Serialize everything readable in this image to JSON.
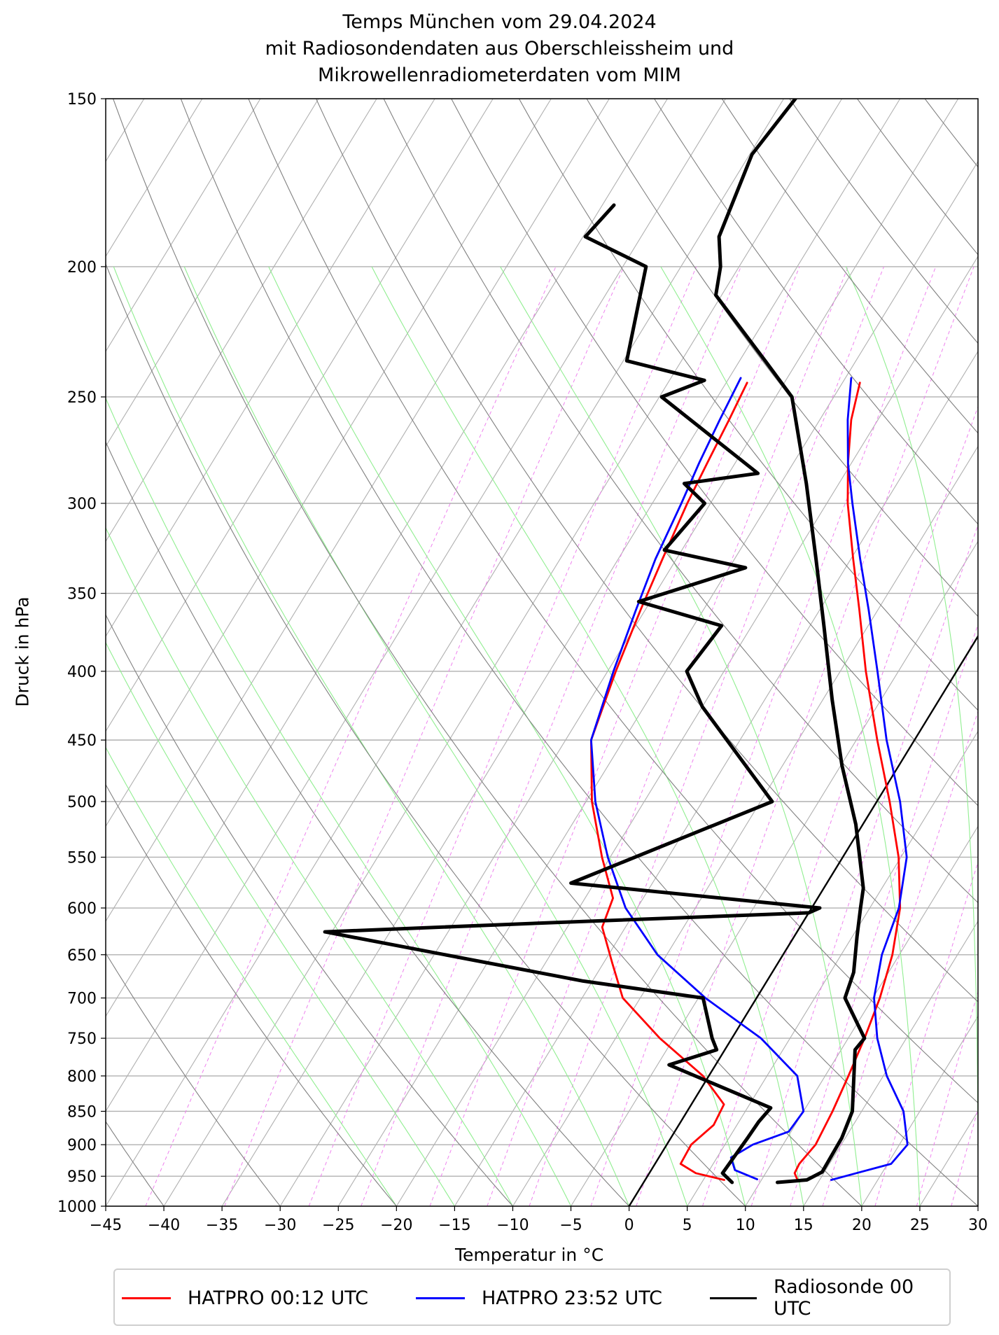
{
  "figure": {
    "title_lines": [
      "Temps München vom 29.04.2024",
      "mit Radiosondendaten aus Oberschleissheim und",
      "Mikrowellenradiometerdaten vom MIM"
    ]
  },
  "chart_data": {
    "type": "line",
    "diagram": "Skew-T log-P",
    "title": "Temps München vom 29.04.2024 mit Radiosondendaten aus Oberschleissheim und Mikrowellenradiometerdaten vom MIM",
    "xlabel": "Temperatur in $^\\circ$C",
    "xlabel_display": "Temperatur in ",
    "xlabel_unit": "°C",
    "ylabel": "Druck in hPa",
    "xlim": [
      -45,
      30
    ],
    "ylim": [
      1000,
      150
    ],
    "y_scale": "log",
    "grid": true,
    "legend_position": "below",
    "x_ticks": [
      -45,
      -40,
      -35,
      -30,
      -25,
      -20,
      -15,
      -10,
      -5,
      0,
      5,
      10,
      15,
      20,
      25,
      30
    ],
    "x_tick_labels": [
      "−45",
      "−40",
      "−35",
      "−30",
      "−25",
      "−20",
      "−15",
      "−10",
      "−5",
      "0",
      "5",
      "10",
      "15",
      "20",
      "25",
      "30"
    ],
    "y_ticks": [
      1000,
      950,
      900,
      850,
      800,
      750,
      700,
      650,
      600,
      550,
      500,
      450,
      400,
      350,
      300,
      250,
      200,
      150
    ],
    "y_tick_labels": [
      "1000",
      "950",
      "900",
      "850",
      "800",
      "750",
      "700",
      "650",
      "600",
      "550",
      "500",
      "450",
      "400",
      "350",
      "300",
      "250",
      "200",
      "150"
    ],
    "zero_isotherm": true,
    "colors": {
      "hatpro_0012": "#ff0000",
      "hatpro_2352": "#0000ff",
      "radiosonde": "#000000",
      "dry_adiabats": "#808080",
      "moist_adiabats": "#90ee90",
      "mixing_ratio": "#ee82ee",
      "grid": "#b0b0b0"
    },
    "series": [
      {
        "name": "HATPRO 00:12 UTC",
        "color": "#ff0000",
        "profiles": [
          {
            "kind": "temperature",
            "p": [
              244,
              260,
              280,
              300,
              330,
              360,
              400,
              450,
              500,
              550,
              600,
              650,
              700,
              750,
              800,
              850,
              900,
              930,
              945,
              956
            ],
            "t": [
              -23.5,
              -22.3,
              -20.3,
              -18.2,
              -14.8,
              -11.6,
              -7.8,
              -3.2,
              1.1,
              4.8,
              7.6,
              9.4,
              10.6,
              11.4,
              12.0,
              12.5,
              12.8,
              12.4,
              12.5,
              13.1
            ]
          },
          {
            "kind": "dewpoint",
            "p": [
              244,
              260,
              280,
              300,
              330,
              360,
              400,
              450,
              500,
              550,
              590,
              620,
              660,
              700,
              750,
              800,
              840,
              870,
              900,
              930,
              945,
              956
            ],
            "t": [
              -33.2,
              -32.8,
              -32.4,
              -32.0,
              -31.2,
              -30.4,
              -29.3,
              -27.8,
              -24.5,
              -20.7,
              -17.6,
              -17.0,
              -14.2,
              -11.5,
              -6.2,
              -0.5,
              2.8,
              3.0,
              2.1,
              2.2,
              4.0,
              6.8
            ]
          }
        ]
      },
      {
        "name": "HATPRO 23:52 UTC",
        "color": "#0000ff",
        "profiles": [
          {
            "kind": "temperature",
            "p": [
              242,
              260,
              280,
              300,
              330,
              360,
              400,
              450,
              500,
              550,
              600,
              650,
              700,
              750,
              800,
              850,
              900,
              930,
              945,
              956
            ],
            "t": [
              -24.5,
              -22.6,
              -20.3,
              -17.8,
              -14.2,
              -10.8,
              -6.8,
              -2.4,
              2.0,
              5.5,
              7.5,
              8.5,
              10.1,
              12.5,
              15.3,
              18.6,
              20.7,
              20.3,
              17.8,
              16.0
            ]
          },
          {
            "kind": "dewpoint",
            "p": [
              242,
              260,
              280,
              300,
              330,
              360,
              400,
              450,
              500,
              550,
              600,
              650,
              700,
              750,
              800,
              850,
              880,
              900,
              920,
              940,
              955
            ],
            "t": [
              -34.0,
              -33.6,
              -33.1,
              -32.5,
              -31.8,
              -30.8,
              -29.5,
              -27.8,
              -24.2,
              -20.2,
              -16.0,
              -10.8,
              -4.4,
              2.5,
              7.6,
              10.0,
              9.8,
              7.4,
              6.2,
              7.2,
              9.6
            ]
          }
        ]
      },
      {
        "name": "Radiosonde 00 UTC",
        "color": "#000000",
        "profiles": [
          {
            "kind": "temperature",
            "p": [
              150,
              165,
              190,
              200,
              210,
              235,
              250,
              290,
              330,
              370,
              420,
              470,
              520,
              580,
              600,
              630,
              670,
              700,
              750,
              765,
              850,
              890,
              943,
              956,
              960
            ],
            "t": [
              -44.0,
              -44.8,
              -43.3,
              -41.6,
              -40.5,
              -32.8,
              -28.6,
              -22.8,
              -18.0,
              -13.8,
              -9.2,
              -4.9,
              -0.6,
              3.4,
              4.2,
              5.4,
              7.0,
              7.6,
              11.4,
              11.2,
              14.2,
              14.7,
              14.8,
              13.9,
              11.5
            ]
          },
          {
            "kind": "dewpoint",
            "p": [
              180,
              190,
              200,
              235,
              243,
              250,
              285,
              290,
              300,
              325,
              335,
              355,
              370,
              400,
              425,
              500,
              575,
              600,
              605,
              615,
              625,
              680,
              700,
              750,
              765,
              785,
              845,
              865,
              890,
              945,
              960
            ],
            "t": [
              -54.0,
              -54.8,
              -48.0,
              -44.7,
              -37.0,
              -39.8,
              -27.5,
              -33.3,
              -30.5,
              -31.5,
              -23.6,
              -31.0,
              -22.6,
              -23.2,
              -20.0,
              -9.0,
              -22.0,
              0.7,
              0.0,
              -21.0,
              -40.6,
              -15.8,
              -4.6,
              -1.7,
              -0.7,
              -4.0,
              7.0,
              6.7,
              6.6,
              6.3,
              7.6
            ]
          }
        ]
      }
    ]
  },
  "legend": [
    {
      "label": "HATPRO 00:12 UTC",
      "color": "#ff0000"
    },
    {
      "label": "HATPRO 23:52 UTC",
      "color": "#0000ff"
    },
    {
      "label": "Radiosonde 00 UTC",
      "color": "#000000"
    }
  ]
}
